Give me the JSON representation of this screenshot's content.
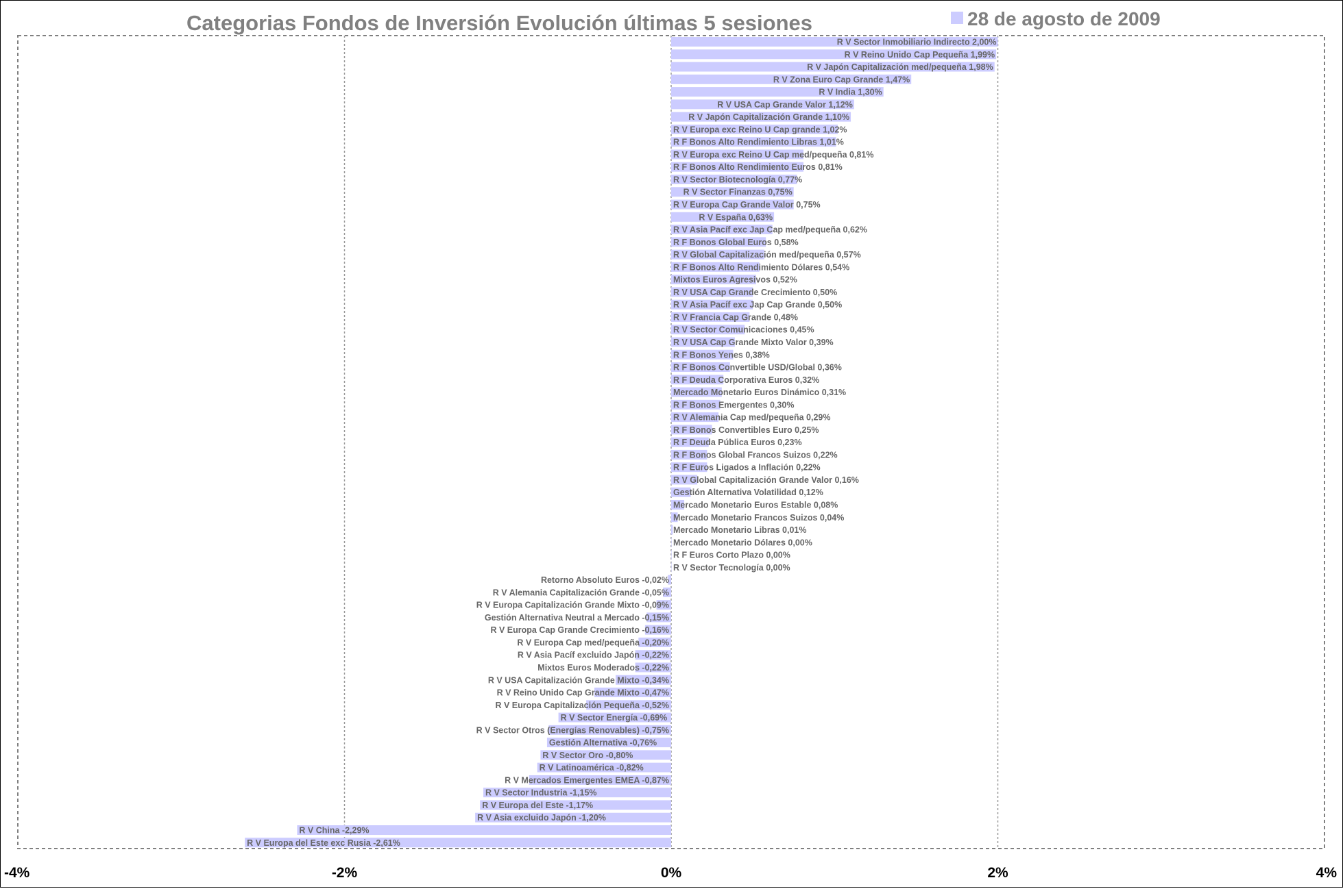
{
  "chart_data": {
    "type": "bar",
    "orientation": "horizontal",
    "title": "Categorias Fondos de Inversión Evolución últimas 5 sesiones",
    "legend": {
      "label": "28 de agosto de 2009",
      "position": "top-right"
    },
    "xlim": [
      -4,
      4
    ],
    "x_ticks": [
      {
        "value": -4,
        "label": "-4%"
      },
      {
        "value": -2,
        "label": "-2%"
      },
      {
        "value": 0,
        "label": "0%"
      },
      {
        "value": 2,
        "label": "2%"
      },
      {
        "value": 4,
        "label": "4%"
      }
    ],
    "grid": "vertical dotted",
    "bar_color": "#ccccff",
    "label_color": "#666666",
    "title_color": "#808080",
    "series": [
      {
        "name": "28 de agosto de 2009",
        "data": [
          {
            "label": "R V Sector Inmobiliario Indirecto 2,00%",
            "value": 2.0
          },
          {
            "label": "R V Reino Unido Cap Pequeña 1,99%",
            "value": 1.99
          },
          {
            "label": "R V Japón Capitalización med/pequeña 1,98%",
            "value": 1.98
          },
          {
            "label": "R V Zona Euro Cap Grande 1,47%",
            "value": 1.47
          },
          {
            "label": "R V India 1,30%",
            "value": 1.3
          },
          {
            "label": "R V USA Cap Grande Valor 1,12%",
            "value": 1.12
          },
          {
            "label": "R V Japón Capitalización Grande 1,10%",
            "value": 1.1
          },
          {
            "label": "R V Europa exc Reino U Cap grande 1,02%",
            "value": 1.02
          },
          {
            "label": "R F Bonos Alto Rendimiento Libras 1,01%",
            "value": 1.01
          },
          {
            "label": "R V Europa exc Reino U Cap med/pequeña 0,81%",
            "value": 0.81
          },
          {
            "label": "R F Bonos Alto Rendimiento Euros 0,81%",
            "value": 0.81
          },
          {
            "label": "R V Sector Biotecnología 0,77%",
            "value": 0.77
          },
          {
            "label": "R V Sector Finanzas 0,75%",
            "value": 0.75
          },
          {
            "label": "R V Europa Cap Grande Valor 0,75%",
            "value": 0.75
          },
          {
            "label": "R V España 0,63%",
            "value": 0.63
          },
          {
            "label": "R V Asia Pacíf exc Jap Cap med/pequeña 0,62%",
            "value": 0.62
          },
          {
            "label": "R F Bonos Global Euros 0,58%",
            "value": 0.58
          },
          {
            "label": "R V Global Capitalización med/pequeña 0,57%",
            "value": 0.57
          },
          {
            "label": "R F Bonos Alto Rendimiento Dólares 0,54%",
            "value": 0.54
          },
          {
            "label": "Mixtos Euros Agresivos 0,52%",
            "value": 0.52
          },
          {
            "label": "R V USA Cap Grande Crecimiento 0,50%",
            "value": 0.5
          },
          {
            "label": "R V Asia Pacíf exc Jap Cap Grande 0,50%",
            "value": 0.5
          },
          {
            "label": "R V Francia Cap Grande 0,48%",
            "value": 0.48
          },
          {
            "label": "R V Sector Comunicaciones 0,45%",
            "value": 0.45
          },
          {
            "label": "R V USA Cap Grande Mixto Valor 0,39%",
            "value": 0.39
          },
          {
            "label": "R F Bonos Yenes 0,38%",
            "value": 0.38
          },
          {
            "label": "R F Bonos Convertible USD/Global 0,36%",
            "value": 0.36
          },
          {
            "label": "R F Deuda Corporativa Euros 0,32%",
            "value": 0.32
          },
          {
            "label": "Mercado Monetario Euros Dinámico 0,31%",
            "value": 0.31
          },
          {
            "label": "R F Bonos Emergentes 0,30%",
            "value": 0.3
          },
          {
            "label": "R V Alemania Cap med/pequeña 0,29%",
            "value": 0.29
          },
          {
            "label": "R F Bonos Convertibles Euro 0,25%",
            "value": 0.25
          },
          {
            "label": "R F Deuda Pública Euros 0,23%",
            "value": 0.23
          },
          {
            "label": "R F Bonos Global Francos Suizos 0,22%",
            "value": 0.22
          },
          {
            "label": "R F Euros Ligados a Inflación 0,22%",
            "value": 0.22
          },
          {
            "label": "R V Global Capitalización Grande Valor 0,16%",
            "value": 0.16
          },
          {
            "label": "Gestión Alternativa Volatilidad 0,12%",
            "value": 0.12
          },
          {
            "label": "Mercado Monetario Euros Estable 0,08%",
            "value": 0.08
          },
          {
            "label": "Mercado Monetario Francos Suizos 0,04%",
            "value": 0.04
          },
          {
            "label": "Mercado Monetario Libras 0,01%",
            "value": 0.01
          },
          {
            "label": "Mercado Monetario Dólares 0,00%",
            "value": 0.0
          },
          {
            "label": "R F Euros Corto Plazo 0,00%",
            "value": 0.0
          },
          {
            "label": "R V Sector Tecnología 0,00%",
            "value": 0.0
          },
          {
            "label": "Retorno Absoluto Euros -0,02%",
            "value": -0.02
          },
          {
            "label": "R V Alemania Capitalización Grande -0,05%",
            "value": -0.05
          },
          {
            "label": "R V Europa Capitalización Grande Mixto -0,09%",
            "value": -0.09
          },
          {
            "label": "Gestión Alternativa Neutral a Mercado -0,15%",
            "value": -0.15
          },
          {
            "label": "R V Europa Cap Grande Crecimiento -0,16%",
            "value": -0.16
          },
          {
            "label": "R V Europa Cap med/pequeña -0,20%",
            "value": -0.2
          },
          {
            "label": "R V Asia Pacíf excluido Japón -0,22%",
            "value": -0.22
          },
          {
            "label": "Mixtos Euros Moderados -0,22%",
            "value": -0.22
          },
          {
            "label": "R V USA Capitalización Grande Mixto -0,34%",
            "value": -0.34
          },
          {
            "label": "R V Reino Unido Cap Grande Mixto -0,47%",
            "value": -0.47
          },
          {
            "label": "R V Europa Capitalización Pequeña -0,52%",
            "value": -0.52
          },
          {
            "label": "R V Sector Energía -0,69%",
            "value": -0.69
          },
          {
            "label": "R V Sector Otros (Energías Renovables) -0,75%",
            "value": -0.75
          },
          {
            "label": "Gestión Alternativa -0,76%",
            "value": -0.76
          },
          {
            "label": "R V Sector Oro -0,80%",
            "value": -0.8
          },
          {
            "label": "R V Latinoamérica -0,82%",
            "value": -0.82
          },
          {
            "label": "R V Mercados Emergentes EMEA -0,87%",
            "value": -0.87
          },
          {
            "label": "R V Sector Industria -1,15%",
            "value": -1.15
          },
          {
            "label": "R V Europa del Este -1,17%",
            "value": -1.17
          },
          {
            "label": "R V Asia excluido Japón -1,20%",
            "value": -1.2
          },
          {
            "label": "R V China -2,29%",
            "value": -2.29
          },
          {
            "label": "R V Europa del Este exc Rusia -2,61%",
            "value": -2.61
          }
        ]
      }
    ]
  }
}
